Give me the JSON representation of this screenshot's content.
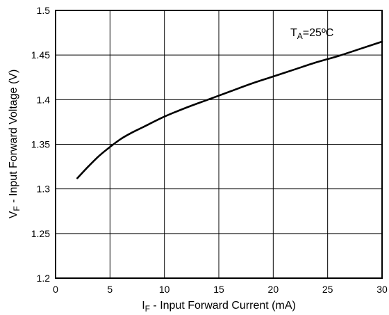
{
  "chart_data": {
    "type": "line",
    "title": "",
    "xlabel": {
      "main": "I",
      "sub": "F",
      "rest": " - Input Forward Current (mA)"
    },
    "ylabel": {
      "main": "V",
      "sub": "F",
      "rest": " - Input Forward Voltage (V)"
    },
    "xlim": [
      0,
      30
    ],
    "ylim": [
      1.2,
      1.5
    ],
    "x_ticks": [
      "0",
      "5",
      "10",
      "15",
      "20",
      "25",
      "30"
    ],
    "y_ticks": [
      "1.2",
      "1.25",
      "1.3",
      "1.35",
      "1.4",
      "1.45",
      "1.5"
    ],
    "grid": true,
    "legend": "none",
    "annotation": {
      "main": "T",
      "sub": "A",
      "rest": "=25ºC"
    },
    "series": [
      {
        "color": "#000000",
        "x": [
          2,
          3,
          4,
          5,
          6,
          7,
          8,
          10,
          12,
          14,
          16,
          18,
          20,
          22,
          24,
          26,
          28,
          30
        ],
        "y": [
          1.312,
          1.325,
          1.337,
          1.347,
          1.356,
          1.363,
          1.369,
          1.381,
          1.391,
          1.4,
          1.409,
          1.418,
          1.426,
          1.434,
          1.442,
          1.449,
          1.457,
          1.465
        ]
      }
    ]
  }
}
